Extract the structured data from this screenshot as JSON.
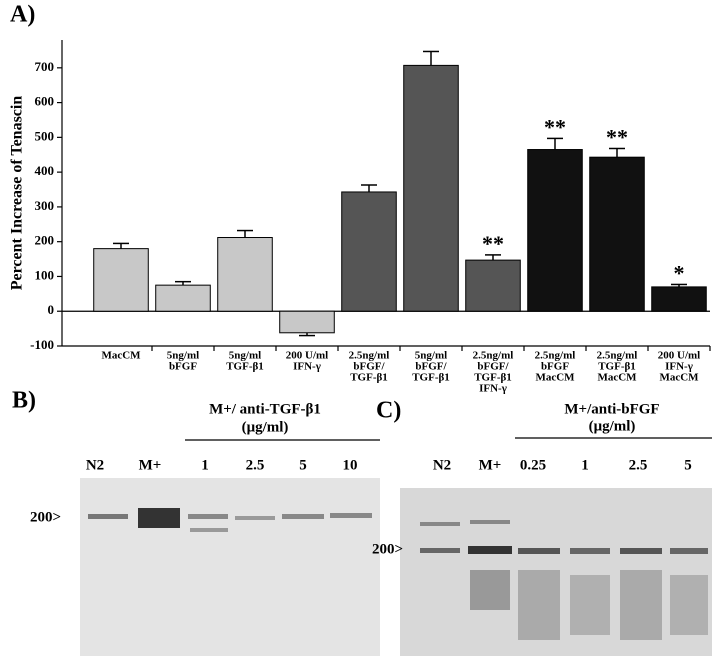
{
  "chart_data": {
    "type": "bar",
    "panel_label": "A)",
    "ylabel": "Percent Increase of Tenascin",
    "categories": [
      [
        "MacCM"
      ],
      [
        "5ng/ml",
        "bFGF"
      ],
      [
        "5ng/ml",
        "TGF-β1"
      ],
      [
        "200 U/ml",
        "IFN-γ"
      ],
      [
        "2.5ng/ml",
        "bFGF/",
        "TGF-β1"
      ],
      [
        "5ng/ml",
        "bFGF/",
        "TGF-β1"
      ],
      [
        "2.5ng/ml",
        "bFGF/",
        "TGF-β1",
        "IFN-γ"
      ],
      [
        "2.5ng/ml",
        "bFGF",
        "MacCM"
      ],
      [
        "2.5ng/ml",
        "TGF-β1",
        "MacCM"
      ],
      [
        "200 U/ml",
        "IFN-γ",
        "MacCM"
      ]
    ],
    "values": [
      180,
      75,
      212,
      -62,
      343,
      707,
      147,
      465,
      443,
      70
    ],
    "errors": [
      15,
      10,
      20,
      8,
      20,
      40,
      15,
      32,
      25,
      7
    ],
    "colors": [
      "#c8c8c8",
      "#c8c8c8",
      "#c8c8c8",
      "#c8c8c8",
      "#555555",
      "#555555",
      "#555555",
      "#111111",
      "#111111",
      "#111111"
    ],
    "annotations": [
      null,
      null,
      null,
      null,
      null,
      null,
      "**",
      "**",
      "**",
      "*"
    ],
    "ylim": [
      -100,
      780
    ],
    "yticks": [
      -100,
      0,
      100,
      200,
      300,
      400,
      500,
      600,
      700
    ]
  },
  "panel_b": {
    "label": "B)",
    "header": "M+/ anti-TGF-β1",
    "unit": "(μg/ml)",
    "lanes": [
      "N2",
      "M+",
      "1",
      "2.5",
      "5",
      "10"
    ],
    "marker": "200>"
  },
  "panel_c": {
    "label": "C)",
    "header": "M+/anti-bFGF",
    "unit": "(μg/ml)",
    "lanes": [
      "N2",
      "M+",
      "0.25",
      "1",
      "2.5",
      "5"
    ],
    "marker": "200>"
  }
}
